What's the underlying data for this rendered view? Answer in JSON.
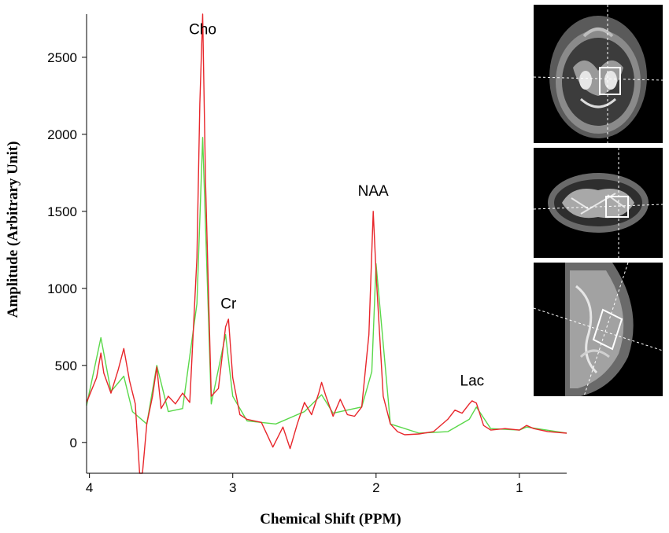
{
  "chart_data": {
    "type": "line",
    "title": "",
    "xlabel": "Chemical Shift (PPM)",
    "ylabel": "Amplitude (Arbitrary Unit)",
    "xlim": [
      4.02,
      0.67
    ],
    "ylim": [
      -200,
      2780
    ],
    "x_reversed": true,
    "x_ticks": [
      4,
      3,
      2,
      1
    ],
    "y_ticks": [
      0,
      500,
      1000,
      1500,
      2000,
      2500
    ],
    "grid": false,
    "annotations": [
      {
        "text": "Cho",
        "x": 3.21,
        "y": 2650
      },
      {
        "text": "Cr",
        "x": 3.03,
        "y": 870
      },
      {
        "text": "NAA",
        "x": 2.02,
        "y": 1600
      },
      {
        "text": "Lac",
        "x": 1.33,
        "y": 370
      }
    ],
    "series": [
      {
        "role": "fitted spectrum",
        "color": "#e8262b",
        "x": [
          4.02,
          3.95,
          3.92,
          3.9,
          3.85,
          3.8,
          3.76,
          3.72,
          3.68,
          3.65,
          3.63,
          3.6,
          3.56,
          3.53,
          3.5,
          3.45,
          3.4,
          3.35,
          3.3,
          3.25,
          3.23,
          3.21,
          3.19,
          3.15,
          3.1,
          3.05,
          3.03,
          3.0,
          2.95,
          2.9,
          2.8,
          2.72,
          2.65,
          2.6,
          2.55,
          2.5,
          2.45,
          2.4,
          2.38,
          2.35,
          2.3,
          2.25,
          2.2,
          2.15,
          2.1,
          2.05,
          2.02,
          2.0,
          1.95,
          1.9,
          1.85,
          1.8,
          1.7,
          1.6,
          1.5,
          1.45,
          1.4,
          1.35,
          1.33,
          1.3,
          1.25,
          1.2,
          1.1,
          1.0,
          0.95,
          0.9,
          0.8,
          0.67
        ],
        "y": [
          260,
          420,
          580,
          450,
          320,
          470,
          610,
          400,
          250,
          -200,
          -200,
          120,
          300,
          490,
          220,
          300,
          250,
          320,
          260,
          1200,
          2200,
          2780,
          1700,
          300,
          350,
          750,
          800,
          420,
          180,
          150,
          130,
          -30,
          100,
          -40,
          120,
          260,
          180,
          320,
          390,
          300,
          170,
          280,
          180,
          170,
          230,
          700,
          1500,
          1100,
          300,
          120,
          70,
          50,
          55,
          70,
          150,
          210,
          190,
          250,
          270,
          255,
          110,
          80,
          90,
          80,
          110,
          90,
          70,
          60
        ]
      },
      {
        "role": "component fits",
        "color": "#5ad84a",
        "x": [
          4.02,
          3.92,
          3.85,
          3.76,
          3.7,
          3.6,
          3.53,
          3.45,
          3.35,
          3.25,
          3.21,
          3.15,
          3.05,
          3.0,
          2.9,
          2.7,
          2.5,
          2.38,
          2.3,
          2.1,
          2.03,
          2.0,
          1.9,
          1.7,
          1.5,
          1.35,
          1.3,
          1.2,
          1.0,
          0.95,
          0.67
        ],
        "y": [
          240,
          680,
          330,
          430,
          200,
          120,
          500,
          200,
          220,
          900,
          1980,
          250,
          700,
          300,
          140,
          120,
          200,
          310,
          190,
          230,
          460,
          1160,
          120,
          60,
          70,
          150,
          230,
          90,
          80,
          100,
          60
        ]
      }
    ]
  },
  "mri_images": [
    {
      "view": "axial"
    },
    {
      "view": "coronal"
    },
    {
      "view": "sagittal"
    }
  ],
  "colors": {
    "spectrum": "#e8262b",
    "fit": "#5ad84a",
    "baseline": "#2fd62a"
  }
}
